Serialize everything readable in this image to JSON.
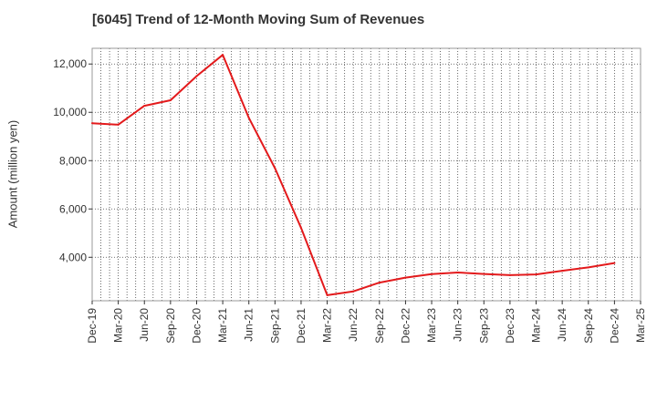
{
  "chart_data": {
    "type": "line",
    "title": "[6045]  Trend of 12-Month Moving Sum of Revenues",
    "xlabel": "",
    "ylabel": "Amount (million yen)",
    "x_ticks": [
      "Dec-19",
      "Mar-20",
      "Jun-20",
      "Sep-20",
      "Dec-20",
      "Mar-21",
      "Jun-21",
      "Sep-21",
      "Dec-21",
      "Mar-22",
      "Jun-22",
      "Sep-22",
      "Dec-22",
      "Mar-23",
      "Jun-23",
      "Sep-23",
      "Dec-23",
      "Mar-24",
      "Jun-24",
      "Sep-24",
      "Dec-24",
      "Mar-25"
    ],
    "y_ticks": [
      4000,
      6000,
      8000,
      10000,
      12000
    ],
    "y_tick_labels": [
      "4,000",
      "6,000",
      "8,000",
      "10,000",
      "12,000"
    ],
    "ylim": [
      2200,
      12650
    ],
    "grid": true,
    "series": [
      {
        "color": "#e31a1c",
        "x": [
          "Dec-19",
          "Mar-20",
          "Jun-20",
          "Sep-20",
          "Dec-20",
          "Mar-21",
          "Jun-21",
          "Sep-21",
          "Dec-21",
          "Mar-22",
          "Jun-22",
          "Sep-22",
          "Dec-22",
          "Mar-23",
          "Jun-23",
          "Sep-23",
          "Dec-23",
          "Mar-24",
          "Jun-24",
          "Sep-24",
          "Dec-24"
        ],
        "values": [
          9550,
          9490,
          10270,
          10500,
          11500,
          12380,
          9770,
          7690,
          5210,
          2430,
          2590,
          2950,
          3160,
          3300,
          3370,
          3310,
          3260,
          3290,
          3440,
          3580,
          3760
        ]
      }
    ]
  }
}
